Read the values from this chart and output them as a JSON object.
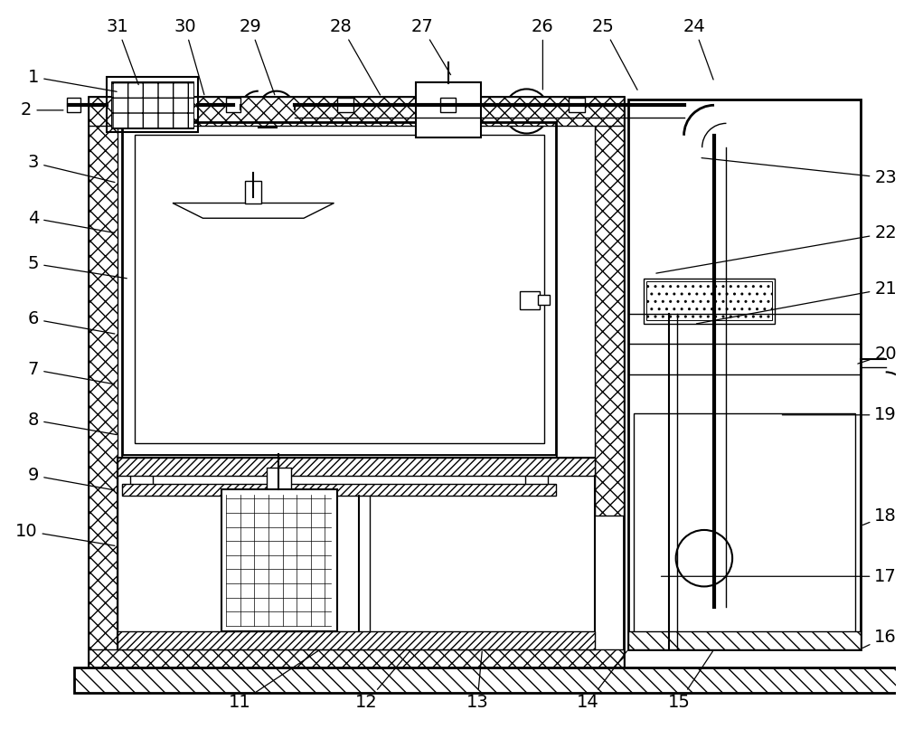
{
  "bg_color": "#ffffff",
  "figsize": [
    10.0,
    8.06
  ],
  "dpi": 100
}
